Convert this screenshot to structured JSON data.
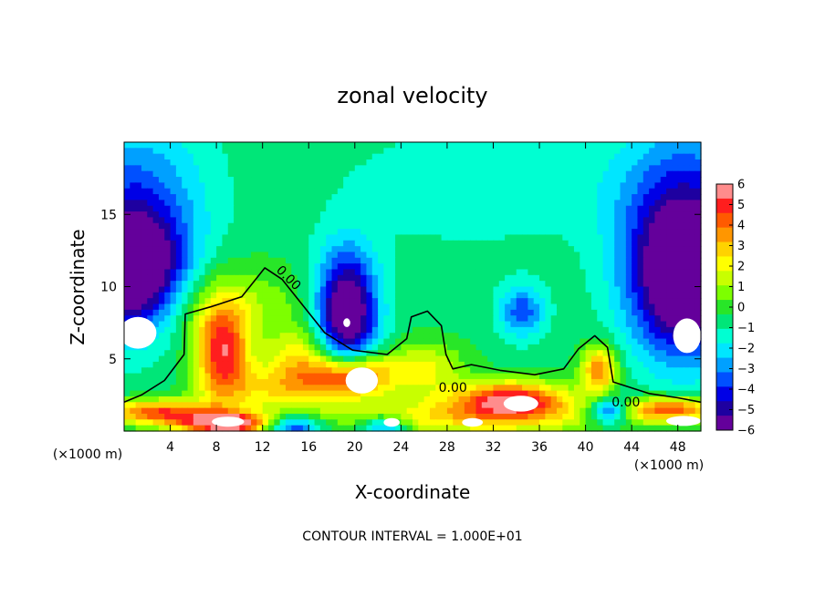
{
  "chart_data": {
    "type": "heatmap",
    "title": "zonal velocity",
    "xlabel": "X-coordinate",
    "ylabel": "Z-coordinate",
    "x_unit_left": "(×1000 m)",
    "x_unit_right": "(×1000 m)",
    "xlim": [
      0,
      50
    ],
    "ylim": [
      0,
      20
    ],
    "x_ticks": [
      4,
      8,
      12,
      16,
      20,
      24,
      28,
      32,
      36,
      40,
      44,
      48
    ],
    "y_ticks": [
      5,
      10,
      15
    ],
    "colorbar": {
      "min": -6,
      "max": 6,
      "ticks": [
        6,
        5,
        4,
        3,
        2,
        1,
        0,
        -1,
        -2,
        -3,
        -4,
        -5,
        -6
      ],
      "tick_labels": [
        "6",
        "5",
        "4",
        "3",
        "2",
        "1",
        "0",
        "−1",
        "−2",
        "−3",
        "−4",
        "−5",
        "−6"
      ],
      "colors": [
        "#ff8c8c",
        "#ff1e1e",
        "#ff5a00",
        "#ff9600",
        "#ffd200",
        "#ffff00",
        "#c8ff00",
        "#7dff00",
        "#28e628",
        "#00e678",
        "#00ffd2",
        "#00e6ff",
        "#00a0ff",
        "#0050ff",
        "#0000e6",
        "#1e00a0",
        "#64009b"
      ]
    },
    "contour_labels": [
      "0.00",
      "0.00",
      "0.00"
    ],
    "contour_label_points": [
      [
        14,
        10.4
      ],
      [
        28.5,
        2.7
      ],
      [
        43.5,
        1.7
      ]
    ],
    "zero_contour": [
      [
        0,
        2
      ],
      [
        1.5,
        2.5
      ],
      [
        3.5,
        3.5
      ],
      [
        5.2,
        5.3
      ],
      [
        5.3,
        8.1
      ],
      [
        7.5,
        8.6
      ],
      [
        10.2,
        9.3
      ],
      [
        11.5,
        10.6
      ],
      [
        12.2,
        11.3
      ],
      [
        13.7,
        10.5
      ],
      [
        15.5,
        8.7
      ],
      [
        17.4,
        6.8
      ],
      [
        19.8,
        5.6
      ],
      [
        22.8,
        5.3
      ],
      [
        24.5,
        6.4
      ],
      [
        24.9,
        7.9
      ],
      [
        26.3,
        8.3
      ],
      [
        27.5,
        7.3
      ],
      [
        27.9,
        5.3
      ],
      [
        28.5,
        4.3
      ],
      [
        30.1,
        4.6
      ],
      [
        32.6,
        4.2
      ],
      [
        35.6,
        3.9
      ],
      [
        38.1,
        4.3
      ],
      [
        39.4,
        5.7
      ],
      [
        40.8,
        6.6
      ],
      [
        41.9,
        5.8
      ],
      [
        42.4,
        3.4
      ],
      [
        45.5,
        2.6
      ],
      [
        48,
        2.3
      ],
      [
        50,
        2
      ]
    ],
    "velocity_field": {
      "background": -0.6,
      "blobs": [
        {
          "x": 0.8,
          "z": 10.8,
          "sx": 3.2,
          "sz": 3.0,
          "v": -7.0
        },
        {
          "x": 48.6,
          "z": 10.4,
          "sx": 3.4,
          "sz": 3.8,
          "v": -6.8
        },
        {
          "x": 19.3,
          "z": 8.2,
          "sx": 1.9,
          "sz": 3.0,
          "v": -6.6
        },
        {
          "x": 0.8,
          "z": 16.5,
          "sx": 4.5,
          "sz": 4.0,
          "v": -2.5
        },
        {
          "x": 48.6,
          "z": 16.5,
          "sx": 4.5,
          "sz": 4.0,
          "v": -2.5
        },
        {
          "x": 34.5,
          "z": 8.3,
          "sx": 1.4,
          "sz": 1.3,
          "v": -3.0
        },
        {
          "x": 30.0,
          "z": 17.0,
          "sx": 8.0,
          "sz": 3.0,
          "v": -1.0
        },
        {
          "x": 8.5,
          "z": 5.5,
          "sx": 1.6,
          "sz": 2.4,
          "v": 5.2
        },
        {
          "x": 19.8,
          "z": 3.8,
          "sx": 2.3,
          "sz": 1.1,
          "v": 5.8
        },
        {
          "x": 33.5,
          "z": 2.2,
          "sx": 3.6,
          "sz": 0.9,
          "v": 5.6
        },
        {
          "x": 41.2,
          "z": 4.2,
          "sx": 1.1,
          "sz": 1.2,
          "v": 4.5
        },
        {
          "x": 9.0,
          "z": 0.5,
          "sx": 3.0,
          "sz": 0.5,
          "v": 6.5
        },
        {
          "x": 30.0,
          "z": 0.9,
          "sx": 10.0,
          "sz": 0.9,
          "v": 2.8
        },
        {
          "x": 3.0,
          "z": 1.3,
          "sx": 3.5,
          "sz": 0.6,
          "v": 5.0
        },
        {
          "x": 47.5,
          "z": 1.5,
          "sx": 3.0,
          "sz": 0.6,
          "v": 4.8
        },
        {
          "x": 13.5,
          "z": 3.0,
          "sx": 4.0,
          "sz": 1.2,
          "v": 2.8
        },
        {
          "x": 26.0,
          "z": 4.3,
          "sx": 2.5,
          "sz": 1.3,
          "v": 2.5
        },
        {
          "x": 8.0,
          "z": 8.5,
          "sx": 6.0,
          "sz": 2.2,
          "v": 1.8
        },
        {
          "x": 15.5,
          "z": 5.0,
          "sx": 2.0,
          "sz": 1.5,
          "v": 2.5
        },
        {
          "x": 42.0,
          "z": 1.4,
          "sx": 1.3,
          "sz": 0.7,
          "v": -4.5
        },
        {
          "x": 14.5,
          "z": 0.3,
          "sx": 1.8,
          "sz": 0.6,
          "v": -4.5
        },
        {
          "x": 22.5,
          "z": 0.3,
          "sx": 1.4,
          "sz": 0.5,
          "v": -3.5
        }
      ]
    },
    "saturated_regions": [
      {
        "x": 1.2,
        "z": 6.8,
        "rx": 1.6,
        "rz": 1.1,
        "side": "low"
      },
      {
        "x": 48.8,
        "z": 6.6,
        "rx": 1.2,
        "rz": 1.2,
        "side": "low"
      },
      {
        "x": 19.3,
        "z": 7.5,
        "rx": 0.3,
        "rz": 0.3,
        "side": "low"
      },
      {
        "x": 20.6,
        "z": 3.5,
        "rx": 1.4,
        "rz": 0.9,
        "side": "high"
      },
      {
        "x": 34.4,
        "z": 1.9,
        "rx": 1.5,
        "rz": 0.55,
        "side": "high"
      },
      {
        "x": 9.0,
        "z": 0.65,
        "rx": 1.4,
        "rz": 0.35,
        "side": "high"
      },
      {
        "x": 23.2,
        "z": 0.6,
        "rx": 0.7,
        "rz": 0.3,
        "side": "high"
      },
      {
        "x": 30.2,
        "z": 0.6,
        "rx": 0.9,
        "rz": 0.3,
        "side": "high"
      },
      {
        "x": 48.5,
        "z": 0.7,
        "rx": 1.5,
        "rz": 0.35,
        "side": "high"
      }
    ],
    "footer": "CONTOUR INTERVAL = 1.000E+01"
  }
}
